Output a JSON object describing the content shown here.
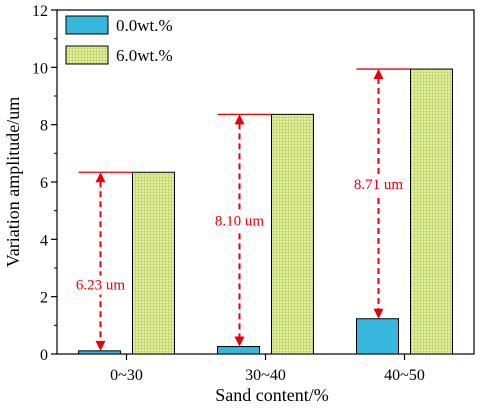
{
  "chart_data": {
    "type": "bar",
    "xlabel": "Sand content/%",
    "ylabel": "Variation amplitude/um",
    "ylim": [
      0,
      12
    ],
    "yticks": [
      0,
      2,
      4,
      6,
      8,
      10,
      12
    ],
    "categories": [
      "0~30",
      "30~40",
      "40~50"
    ],
    "series": [
      {
        "name": "0.0wt.%",
        "values": [
          0.11,
          0.26,
          1.23
        ],
        "color": "#36b8dc",
        "hatch": "none"
      },
      {
        "name": "6.0wt.%",
        "values": [
          6.34,
          8.36,
          9.94
        ],
        "color": "#dfef9a",
        "hatch": "grid"
      }
    ],
    "legend": {
      "position": "top-left"
    },
    "grid": false,
    "annotations": [
      {
        "category": 0,
        "from": 0.11,
        "to": 6.34,
        "label": "6.23 um"
      },
      {
        "category": 1,
        "from": 0.26,
        "to": 8.36,
        "label": "8.10 um"
      },
      {
        "category": 2,
        "from": 1.23,
        "to": 9.94,
        "label": "8.71 um"
      }
    ],
    "annotation_color": "#e8000b"
  }
}
